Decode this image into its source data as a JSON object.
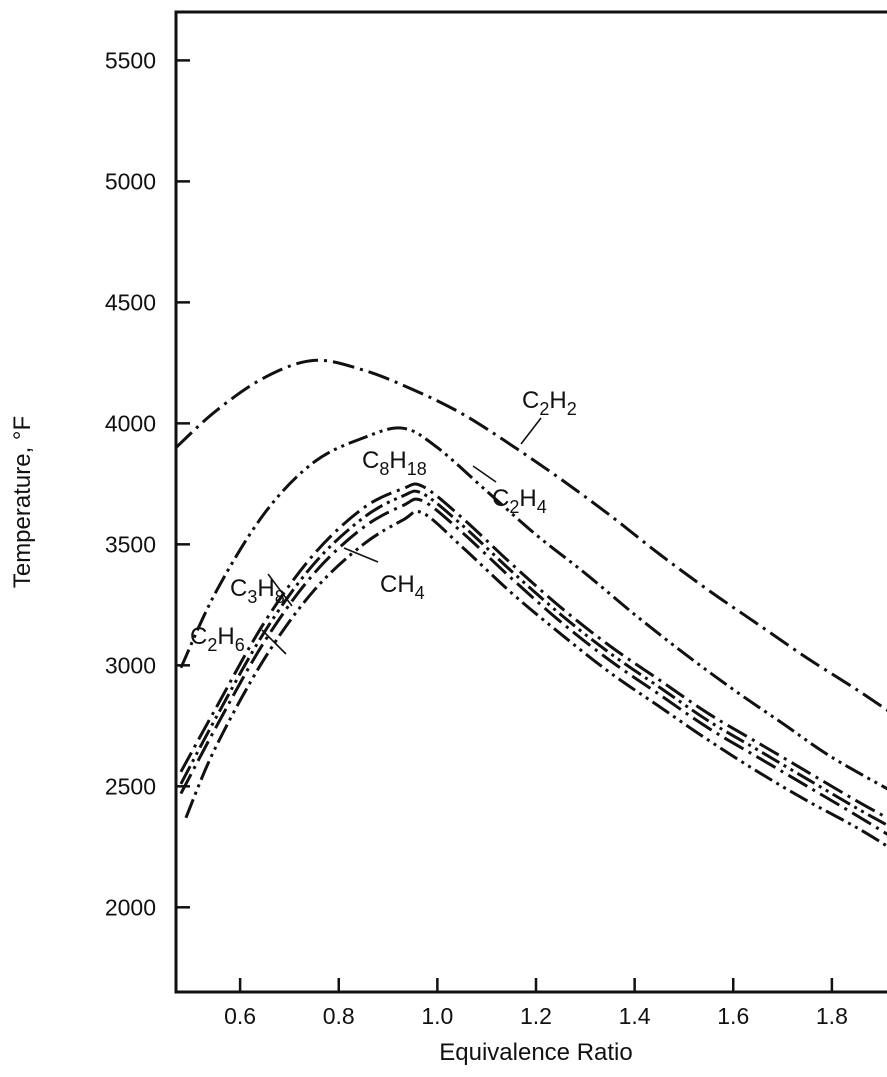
{
  "chart_data": {
    "type": "line",
    "title": "",
    "xlabel": "Equivalence Ratio",
    "ylabel": "Temperature, °F",
    "xlim": [
      0.47,
      1.93
    ],
    "ylim": [
      1650,
      5700
    ],
    "xticks": [
      "0.6",
      "0.8",
      "1.0",
      "1.2",
      "1.4",
      "1.6",
      "1.8"
    ],
    "yticks": [
      "2000",
      "2500",
      "3000",
      "3500",
      "4000",
      "4500",
      "5000",
      "5500"
    ],
    "grid": false,
    "legend": "inline labels",
    "series": [
      {
        "name": "C2H2",
        "label": {
          "base": "C",
          "sub1": "2",
          "mid": "H",
          "sub2": "2"
        },
        "style": "dash-dot",
        "x": [
          0.47,
          0.55,
          0.65,
          0.75,
          0.85,
          0.95,
          1.05,
          1.15,
          1.25,
          1.35,
          1.45,
          1.55,
          1.65,
          1.75,
          1.85,
          1.93
        ],
        "y": [
          3900,
          4050,
          4190,
          4260,
          4220,
          4140,
          4040,
          3910,
          3770,
          3620,
          3460,
          3310,
          3170,
          3030,
          2900,
          2790
        ]
      },
      {
        "name": "C2H4",
        "label": {
          "base": "C",
          "sub1": "2",
          "mid": "H",
          "sub2": "4"
        },
        "style": "dash-dot-dot",
        "x": [
          0.48,
          0.55,
          0.65,
          0.75,
          0.85,
          0.93,
          1.0,
          1.1,
          1.2,
          1.3,
          1.4,
          1.5,
          1.6,
          1.7,
          1.8,
          1.93
        ],
        "y": [
          2990,
          3300,
          3630,
          3840,
          3940,
          3980,
          3900,
          3720,
          3540,
          3380,
          3210,
          3050,
          2900,
          2760,
          2620,
          2470
        ]
      },
      {
        "name": "C8H18",
        "label": {
          "base": "C",
          "sub1": "8",
          "mid": "H",
          "sub2": "18"
        },
        "style": "dash-dot",
        "x": [
          0.48,
          0.55,
          0.65,
          0.75,
          0.85,
          0.93,
          0.97,
          1.05,
          1.15,
          1.25,
          1.35,
          1.45,
          1.55,
          1.65,
          1.75,
          1.85,
          1.93
        ],
        "y": [
          2560,
          2820,
          3180,
          3460,
          3650,
          3730,
          3740,
          3610,
          3420,
          3240,
          3080,
          2940,
          2800,
          2680,
          2560,
          2440,
          2350
        ]
      },
      {
        "name": "C3H8",
        "label": {
          "base": "C",
          "sub1": "3",
          "mid": "H",
          "sub2": "8"
        },
        "style": "dash-dot-dot",
        "x": [
          0.48,
          0.55,
          0.65,
          0.75,
          0.85,
          0.93,
          0.97,
          1.05,
          1.15,
          1.25,
          1.35,
          1.45,
          1.55,
          1.65,
          1.75,
          1.85,
          1.93
        ],
        "y": [
          2510,
          2780,
          3140,
          3420,
          3610,
          3700,
          3710,
          3580,
          3390,
          3210,
          3050,
          2910,
          2770,
          2650,
          2530,
          2410,
          2320
        ]
      },
      {
        "name": "C2H6",
        "label": {
          "base": "C",
          "sub1": "2",
          "mid": "H",
          "sub2": "6"
        },
        "style": "dash-dot",
        "x": [
          0.48,
          0.55,
          0.65,
          0.75,
          0.85,
          0.93,
          0.97,
          1.05,
          1.15,
          1.25,
          1.35,
          1.45,
          1.55,
          1.65,
          1.75,
          1.85,
          1.93
        ],
        "y": [
          2470,
          2740,
          3100,
          3380,
          3570,
          3660,
          3680,
          3550,
          3360,
          3180,
          3020,
          2880,
          2740,
          2620,
          2500,
          2380,
          2280
        ]
      },
      {
        "name": "CH4",
        "label": {
          "base": "CH",
          "sub1": "4",
          "mid": "",
          "sub2": ""
        },
        "style": "dash-dot-dot",
        "x": [
          0.49,
          0.55,
          0.65,
          0.75,
          0.85,
          0.93,
          0.97,
          1.05,
          1.15,
          1.25,
          1.35,
          1.45,
          1.55,
          1.65,
          1.75,
          1.85,
          1.93
        ],
        "y": [
          2370,
          2660,
          3030,
          3310,
          3500,
          3600,
          3630,
          3490,
          3300,
          3130,
          2970,
          2830,
          2690,
          2560,
          2440,
          2330,
          2230
        ]
      }
    ]
  }
}
